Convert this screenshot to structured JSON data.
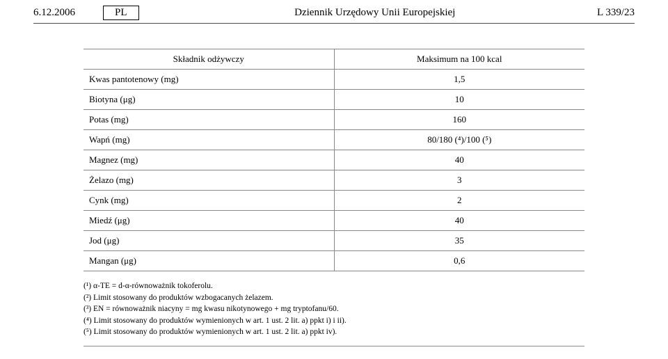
{
  "header": {
    "date": "6.12.2006",
    "lang": "PL",
    "journal_title": "Dziennik Urzędowy Unii Europejskiej",
    "page_ref": "L 339/23"
  },
  "table": {
    "columns": [
      "Składnik odżywczy",
      "Maksimum na 100 kcal"
    ],
    "rows": [
      {
        "label": "Kwas pantotenowy (mg)",
        "value": "1,5"
      },
      {
        "label": "Biotyna (μg)",
        "value": "10"
      },
      {
        "label": "Potas (mg)",
        "value": "160"
      },
      {
        "label": "Wapń (mg)",
        "value": "80/180 (⁴)/100 (⁵)"
      },
      {
        "label": "Magnez (mg)",
        "value": "40"
      },
      {
        "label": "Żelazo (mg)",
        "value": "3"
      },
      {
        "label": "Cynk (mg)",
        "value": "2"
      },
      {
        "label": "Miedź (μg)",
        "value": "40"
      },
      {
        "label": "Jod (μg)",
        "value": "35"
      },
      {
        "label": "Mangan (μg)",
        "value": "0,6"
      }
    ]
  },
  "footnotes": [
    "(¹)  α-TE = d-α-równoważnik tokoferolu.",
    "(²)  Limit stosowany do produktów wzbogacanych żelazem.",
    "(³)  EN = równoważnik niacyny = mg kwasu nikotynowego + mg tryptofanu/60.",
    "(⁴)  Limit stosowany do produktów wymienionych w art. 1 ust. 2 lit. a) ppkt i) i ii).",
    "(⁵)  Limit stosowany do produktów wymienionych w art. 1 ust. 2 lit. a) ppkt iv)."
  ]
}
